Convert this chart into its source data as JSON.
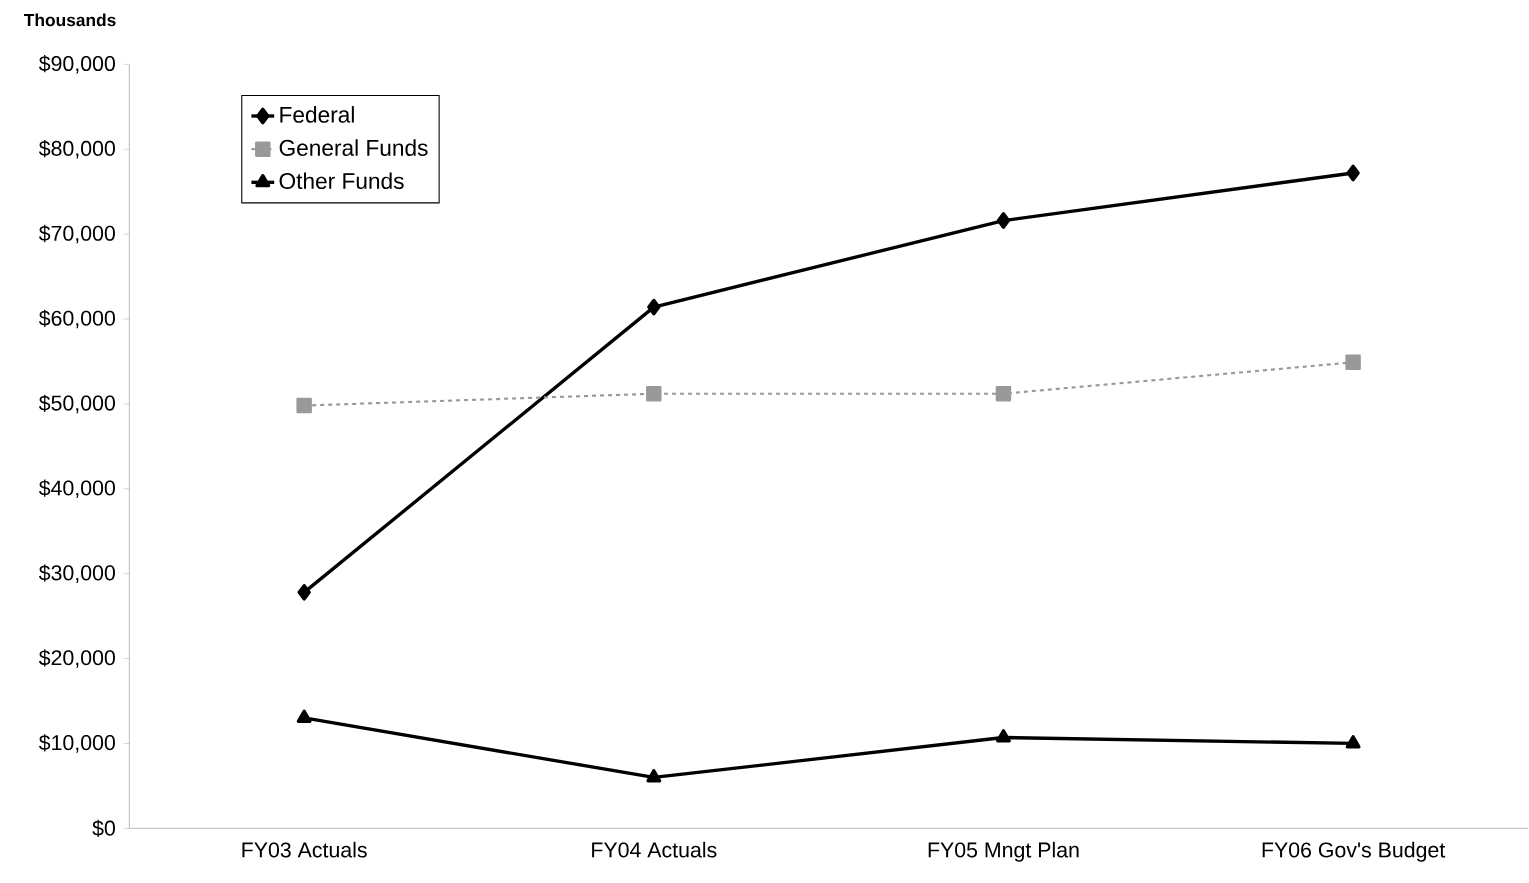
{
  "chart_data": {
    "type": "line",
    "ylabel": "Thousands",
    "categories": [
      "FY03 Actuals",
      "FY04 Actuals",
      "FY05 Mngt Plan",
      "FY06 Gov's Budget"
    ],
    "series": [
      {
        "name": "Federal",
        "color": "#000000",
        "marker": "diamond",
        "line_style": "solid",
        "values": [
          27800,
          61400,
          71600,
          77200
        ]
      },
      {
        "name": "General Funds",
        "color": "#999999",
        "marker": "square",
        "line_style": "dashed",
        "values": [
          49800,
          51200,
          51200,
          54900
        ]
      },
      {
        "name": "Other Funds",
        "color": "#000000",
        "marker": "triangle",
        "line_style": "solid",
        "values": [
          13000,
          6000,
          10700,
          10000
        ]
      }
    ],
    "ylim": [
      0,
      90000
    ],
    "yticks": [
      {
        "value": 0,
        "label": "$0"
      },
      {
        "value": 10000,
        "label": "$10,000"
      },
      {
        "value": 20000,
        "label": "$20,000"
      },
      {
        "value": 30000,
        "label": "$30,000"
      },
      {
        "value": 40000,
        "label": "$40,000"
      },
      {
        "value": 50000,
        "label": "$50,000"
      },
      {
        "value": 60000,
        "label": "$60,000"
      },
      {
        "value": 70000,
        "label": "$70,000"
      },
      {
        "value": 80000,
        "label": "$80,000"
      },
      {
        "value": 90000,
        "label": "$90,000"
      }
    ],
    "grid": false,
    "legend": "top left"
  }
}
